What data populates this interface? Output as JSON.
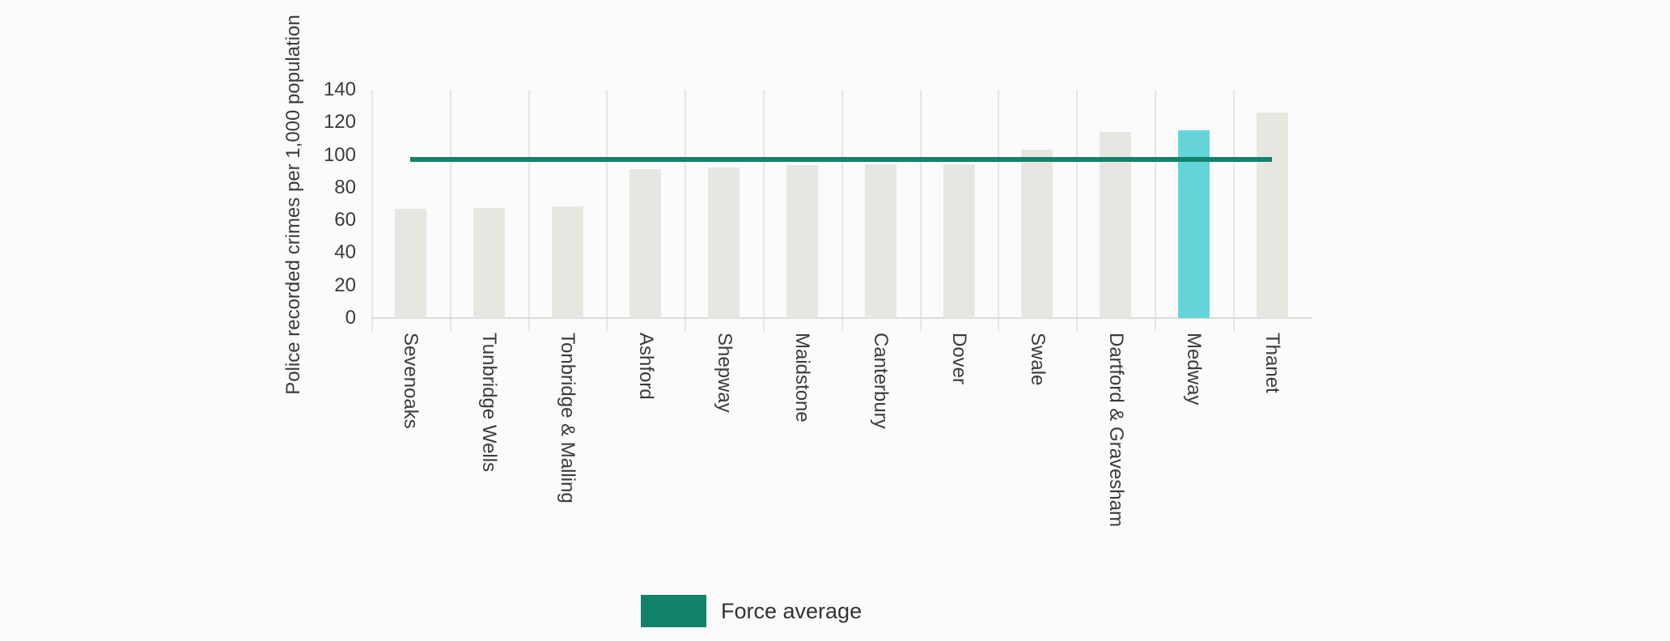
{
  "chart_data": {
    "type": "bar",
    "title": "",
    "xlabel": "",
    "ylabel": "Police recorded crimes per 1,000 population",
    "categories": [
      "Sevenoaks",
      "Tunbridge Wells",
      "Tonbridge & Malling",
      "Ashford",
      "Shepway",
      "Maidstone",
      "Canterbury",
      "Dover",
      "Swale",
      "Dartford & Gravesham",
      "Medway",
      "Thanet"
    ],
    "values": [
      67,
      67.5,
      68.5,
      91.5,
      92.5,
      94,
      94.5,
      94.5,
      103.5,
      114,
      115,
      126
    ],
    "highlighted_category": "Medway",
    "force_average": 97.5,
    "ylim": [
      0,
      140
    ],
    "yticks": [
      0,
      20,
      40,
      60,
      80,
      100,
      120,
      140
    ],
    "grid": "vertical-only",
    "legend": {
      "position": "bottom",
      "entries": [
        {
          "label": "Force average",
          "color": "#12826b",
          "type": "line"
        }
      ]
    },
    "colors": {
      "bar": "#e8e6e1",
      "highlighted_bar": "#63d5d9",
      "force_average_line": "#12826b",
      "gridline": "#e6e6e6",
      "axis_line": "#dbdbdb",
      "text": "#3b3b3b",
      "background": "#fbfbfb"
    }
  }
}
